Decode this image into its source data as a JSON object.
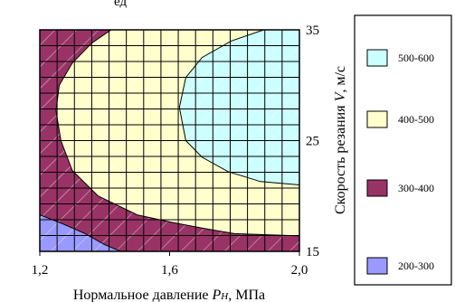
{
  "chart_data": {
    "type": "heatmap",
    "subtype": "filled-contour",
    "top_clipped_text": "ед",
    "x_axis": {
      "label_prefix": "Нормальное давление ",
      "label_symbol": "P",
      "label_subscript": "Н",
      "label_suffix": ", МПа",
      "range": [
        1.2,
        2.0
      ],
      "ticks": [
        {
          "value": 1.2,
          "label": "1,2"
        },
        {
          "value": 1.6,
          "label": "1,6"
        },
        {
          "value": 2.0,
          "label": "2,0"
        }
      ]
    },
    "y_axis": {
      "label_prefix": "Скорость резания ",
      "label_symbol": "V",
      "label_suffix": ", м/с",
      "position": "right",
      "range": [
        15,
        35
      ],
      "ticks": [
        {
          "value": 15,
          "label": "15"
        },
        {
          "value": 25,
          "label": "25"
        },
        {
          "value": 35,
          "label": "35"
        }
      ]
    },
    "grid": true,
    "levels": [
      {
        "range": "200-300",
        "color": "#9999ff"
      },
      {
        "range": "300-400",
        "color": "#993366"
      },
      {
        "range": "400-500",
        "color": "#ffffcc"
      },
      {
        "range": "500-600",
        "color": "#ccffff"
      }
    ],
    "legend": {
      "placement": "right",
      "entries": [
        {
          "label": "500-600",
          "color": "#ccffff"
        },
        {
          "label": "400-500",
          "color": "#ffffcc"
        },
        {
          "label": "300-400",
          "color": "#993366"
        },
        {
          "label": "200-300",
          "color": "#9999ff"
        }
      ]
    },
    "regions": [
      {
        "name": "300-400",
        "color": "#993366",
        "points": [
          [
            1.2,
            35
          ],
          [
            2.0,
            35
          ],
          [
            2.0,
            15
          ],
          [
            1.2,
            15
          ]
        ]
      },
      {
        "name": "400-500",
        "color": "#ffffcc",
        "points": [
          [
            1.42,
            35
          ],
          [
            1.36,
            33.8
          ],
          [
            1.3,
            32
          ],
          [
            1.26,
            30
          ],
          [
            1.25,
            27.7
          ],
          [
            1.265,
            25
          ],
          [
            1.3,
            22.3
          ],
          [
            1.38,
            20
          ],
          [
            1.5,
            18.3
          ],
          [
            1.61,
            17.6
          ],
          [
            1.7,
            17.1
          ],
          [
            1.8,
            16.6
          ],
          [
            2.0,
            16.4
          ],
          [
            2.0,
            35
          ]
        ]
      },
      {
        "name": "500-600",
        "color": "#ccffff",
        "points": [
          [
            1.89,
            35
          ],
          [
            1.79,
            34
          ],
          [
            1.7,
            32.5
          ],
          [
            1.65,
            30.7
          ],
          [
            1.63,
            28
          ],
          [
            1.65,
            25
          ],
          [
            1.7,
            23.5
          ],
          [
            1.78,
            22.2
          ],
          [
            1.88,
            21.3
          ],
          [
            2.0,
            21
          ],
          [
            2.0,
            35
          ]
        ]
      },
      {
        "name": "200-300",
        "color": "#9999ff",
        "points": [
          [
            1.2,
            18.3
          ],
          [
            1.27,
            17.5
          ],
          [
            1.34,
            16.6
          ],
          [
            1.4,
            15.6
          ],
          [
            1.45,
            15
          ],
          [
            1.2,
            15
          ]
        ]
      }
    ]
  }
}
